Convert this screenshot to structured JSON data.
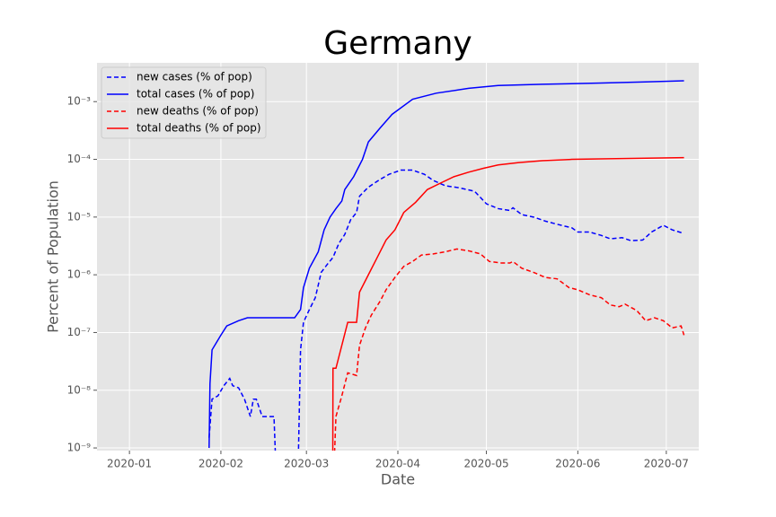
{
  "chart_data": {
    "type": "line",
    "title": "Germany",
    "x_label": "Date",
    "y_label": "Percent of Population",
    "log_y": true,
    "grid": true,
    "legend": "upper left",
    "xlim": [
      -11,
      193
    ],
    "xticks": [
      {
        "value": 0,
        "label": "2020-01"
      },
      {
        "value": 31,
        "label": "2020-02"
      },
      {
        "value": 60,
        "label": "2020-03"
      },
      {
        "value": 91,
        "label": "2020-04"
      },
      {
        "value": 121,
        "label": "2020-05"
      },
      {
        "value": 152,
        "label": "2020-06"
      },
      {
        "value": 182,
        "label": "2020-07"
      }
    ],
    "ylim": [
      9e-10,
      0.0047
    ],
    "yticks": [
      {
        "value": 1e-09,
        "label": "10⁻⁹"
      },
      {
        "value": 1e-08,
        "label": "10⁻⁸"
      },
      {
        "value": 1e-07,
        "label": "10⁻⁷"
      },
      {
        "value": 1e-06,
        "label": "10⁻⁶"
      },
      {
        "value": 1e-05,
        "label": "10⁻⁵"
      },
      {
        "value": 0.0001,
        "label": "10⁻⁴"
      },
      {
        "value": 0.001,
        "label": "10⁻³"
      }
    ],
    "series": [
      {
        "name": "new cases (% of pop)",
        "color": "#0000ff",
        "linestyle": "dashed",
        "x": [
          27,
          28,
          30,
          32,
          34,
          35,
          37,
          39,
          41,
          42,
          43,
          45,
          49,
          50,
          57,
          58,
          59,
          61,
          63,
          65,
          67,
          69,
          71,
          73,
          75,
          77,
          78,
          81,
          85,
          88,
          92,
          96,
          100,
          103,
          107,
          112,
          117,
          121,
          125,
          129,
          130,
          133,
          137,
          141,
          145,
          150,
          152,
          156,
          160,
          163,
          167,
          170,
          174,
          177,
          181,
          184,
          188
        ],
        "values": [
          1.5e-09,
          7e-09,
          8e-09,
          1.2e-08,
          1.6e-08,
          1.2e-08,
          1.1e-08,
          7e-09,
          3.5e-09,
          7e-09,
          7e-09,
          3.5e-09,
          3.5e-09,
          0,
          0,
          5e-08,
          1.5e-07,
          2.5e-07,
          4e-07,
          1.1e-06,
          1.5e-06,
          2e-06,
          3.5e-06,
          5e-06,
          9e-06,
          1.2e-05,
          2.3e-05,
          3.3e-05,
          4.5e-05,
          5.5e-05,
          6.5e-05,
          6.5e-05,
          5.5e-05,
          4.3e-05,
          3.5e-05,
          3.2e-05,
          2.8e-05,
          1.7e-05,
          1.4e-05,
          1.3e-05,
          1.45e-05,
          1.1e-05,
          1e-05,
          8.5e-06,
          7.5e-06,
          6.5e-06,
          5.5e-06,
          5.5e-06,
          4.8e-06,
          4.2e-06,
          4.4e-06,
          3.9e-06,
          4e-06,
          5.5e-06,
          7.2e-06,
          6e-06,
          5.2e-06
        ]
      },
      {
        "name": "total cases (% of pop)",
        "color": "#0000ff",
        "linestyle": "solid",
        "x": [
          27,
          27.3,
          28,
          31,
          33,
          37,
          40,
          56,
          58,
          59,
          61,
          64,
          66,
          68,
          70,
          72,
          73,
          76,
          79,
          81,
          85,
          89,
          96,
          104,
          115,
          125,
          140,
          160,
          175,
          188
        ],
        "values": [
          1e-09,
          1.3e-08,
          5e-08,
          9e-08,
          1.3e-07,
          1.6e-07,
          1.8e-07,
          1.8e-07,
          2.5e-07,
          6e-07,
          1.3e-06,
          2.5e-06,
          6e-06,
          1e-05,
          1.4e-05,
          1.9e-05,
          3e-05,
          5e-05,
          0.0001,
          0.0002,
          0.00035,
          0.0006,
          0.0011,
          0.0014,
          0.0017,
          0.0019,
          0.002,
          0.0021,
          0.0022,
          0.0023
        ]
      },
      {
        "name": "new deaths (% of pop)",
        "color": "#ff0000",
        "linestyle": "dashed",
        "x": [
          69,
          70,
          72,
          74,
          77,
          78,
          80,
          82,
          85,
          87,
          90,
          93,
          96,
          99,
          103,
          107,
          111,
          115,
          119,
          122,
          126,
          129,
          130,
          133,
          137,
          141,
          145,
          149,
          152,
          156,
          160,
          163,
          166,
          168,
          172,
          175,
          178,
          181,
          184,
          187,
          188
        ],
        "values": [
          0,
          3.5e-09,
          8e-09,
          2e-08,
          1.8e-08,
          6e-08,
          1.2e-07,
          2e-07,
          3.5e-07,
          5.5e-07,
          9e-07,
          1.4e-06,
          1.7e-06,
          2.2e-06,
          2.3e-06,
          2.5e-06,
          2.8e-06,
          2.6e-06,
          2.3e-06,
          1.7e-06,
          1.6e-06,
          1.6e-06,
          1.7e-06,
          1.3e-06,
          1.1e-06,
          9e-07,
          8.5e-07,
          6e-07,
          5.5e-07,
          4.5e-07,
          4e-07,
          3e-07,
          2.8e-07,
          3.1e-07,
          2.4e-07,
          1.6e-07,
          1.8e-07,
          1.6e-07,
          1.2e-07,
          1.3e-07,
          9e-08
        ]
      },
      {
        "name": "total deaths (% of pop)",
        "color": "#ff0000",
        "linestyle": "solid",
        "x": [
          68.9,
          69,
          70,
          72,
          74,
          77,
          78,
          81,
          84,
          87,
          90,
          93,
          97,
          101,
          106,
          110,
          115,
          120,
          125,
          132,
          140,
          150,
          165,
          188
        ],
        "values": [
          0,
          2.4e-08,
          2.4e-08,
          6e-08,
          1.5e-07,
          1.5e-07,
          5e-07,
          1e-06,
          2e-06,
          4e-06,
          6e-06,
          1.2e-05,
          1.8e-05,
          3e-05,
          4e-05,
          5e-05,
          6e-05,
          7e-05,
          8e-05,
          8.8e-05,
          9.5e-05,
          0.0001,
          0.000103,
          0.000107
        ]
      }
    ]
  }
}
